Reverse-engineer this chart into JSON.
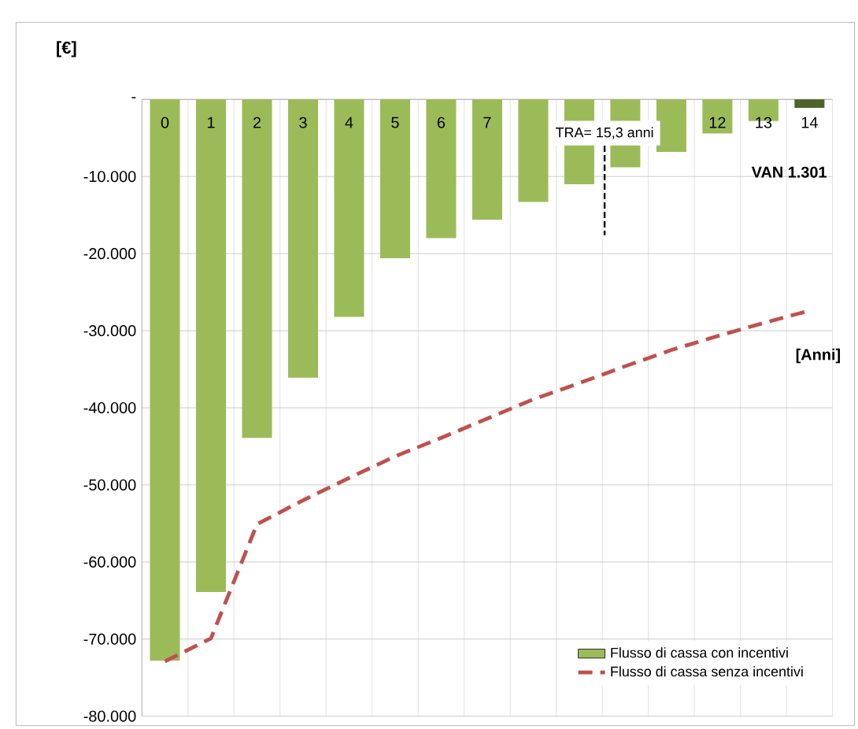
{
  "chart_data": {
    "type": "bar",
    "categories": [
      "0",
      "1",
      "2",
      "3",
      "4",
      "5",
      "6",
      "7",
      null,
      null,
      null,
      null,
      "12",
      "13",
      "14"
    ],
    "ylabel": "[€]",
    "xlabel": "[Anni]",
    "series": [
      {
        "name": "Flusso di cassa con incentivi",
        "color": "#9bbb59",
        "colors": [
          "#9bbb59",
          "#9bbb59",
          "#9bbb59",
          "#9bbb59",
          "#9bbb59",
          "#9bbb59",
          "#9bbb59",
          "#9bbb59",
          "#9bbb59",
          "#9bbb59",
          "#9bbb59",
          "#9bbb59",
          "#9bbb59",
          "#9bbb59",
          "#4f6228"
        ],
        "values": [
          -72800,
          -63900,
          -43900,
          -36100,
          -28200,
          -20600,
          -18000,
          -15600,
          -13300,
          -11000,
          -8800,
          -6800,
          -4400,
          -2800,
          -1100
        ]
      },
      {
        "name": "Flusso di cassa senza incentivi",
        "type": "line",
        "color": "#c0504d",
        "line_style": "dashed",
        "values": [
          -72900,
          -69900,
          -55100,
          -52000,
          -49100,
          -46300,
          -43900,
          -41400,
          -38900,
          -36800,
          -34600,
          -32500,
          -30700,
          -29000,
          -27400
        ]
      }
    ],
    "ylim": [
      -80000,
      0
    ],
    "yticks": [
      {
        "value": 0,
        "label": "-"
      },
      {
        "value": -10000,
        "label": "-10.000"
      },
      {
        "value": -20000,
        "label": "-20.000"
      },
      {
        "value": -30000,
        "label": "-30.000"
      },
      {
        "value": -40000,
        "label": "-40.000"
      },
      {
        "value": -50000,
        "label": "-50.000"
      },
      {
        "value": -60000,
        "label": "-60.000"
      },
      {
        "value": -70000,
        "label": "-70.000"
      },
      {
        "value": -80000,
        "label": "-80.000"
      }
    ],
    "annotations": [
      "TRA= 15,3 anni",
      "VAN 1.301"
    ],
    "grid": true,
    "legend": "bottom right",
    "marker": "none"
  }
}
